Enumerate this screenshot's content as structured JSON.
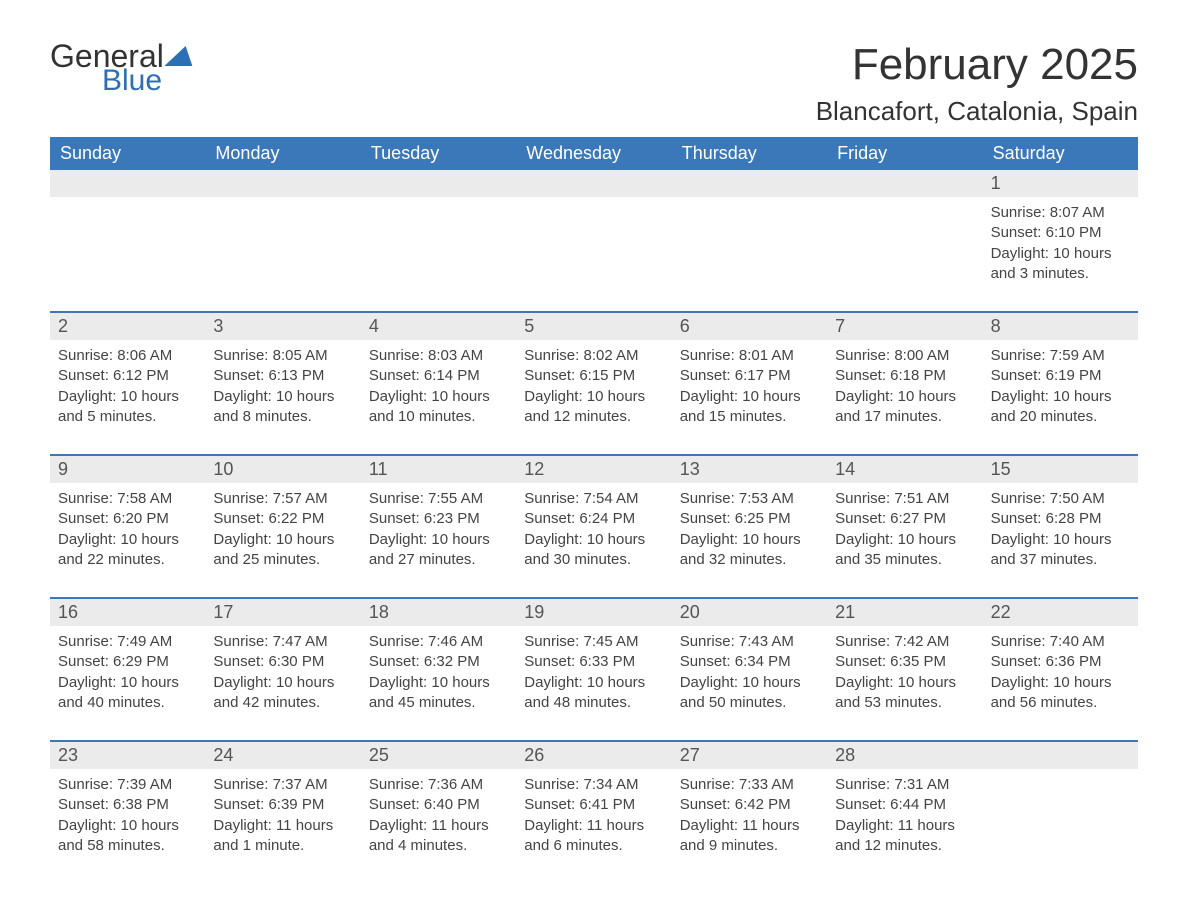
{
  "logo": {
    "text1": "General",
    "text2": "Blue"
  },
  "title": "February 2025",
  "location": "Blancafort, Catalonia, Spain",
  "colors": {
    "header_bg": "#3a78b9",
    "header_text": "#ffffff",
    "strip_bg": "#ebebeb",
    "strip_border": "#3a78b9",
    "body_text": "#444444",
    "title_text": "#333333",
    "logo_blue": "#2d6fb5"
  },
  "day_headers": [
    "Sunday",
    "Monday",
    "Tuesday",
    "Wednesday",
    "Thursday",
    "Friday",
    "Saturday"
  ],
  "weeks": [
    {
      "nums": [
        "",
        "",
        "",
        "",
        "",
        "",
        "1"
      ],
      "cells": [
        null,
        null,
        null,
        null,
        null,
        null,
        {
          "sunrise": "Sunrise: 8:07 AM",
          "sunset": "Sunset: 6:10 PM",
          "day1": "Daylight: 10 hours",
          "day2": "and 3 minutes."
        }
      ]
    },
    {
      "nums": [
        "2",
        "3",
        "4",
        "5",
        "6",
        "7",
        "8"
      ],
      "cells": [
        {
          "sunrise": "Sunrise: 8:06 AM",
          "sunset": "Sunset: 6:12 PM",
          "day1": "Daylight: 10 hours",
          "day2": "and 5 minutes."
        },
        {
          "sunrise": "Sunrise: 8:05 AM",
          "sunset": "Sunset: 6:13 PM",
          "day1": "Daylight: 10 hours",
          "day2": "and 8 minutes."
        },
        {
          "sunrise": "Sunrise: 8:03 AM",
          "sunset": "Sunset: 6:14 PM",
          "day1": "Daylight: 10 hours",
          "day2": "and 10 minutes."
        },
        {
          "sunrise": "Sunrise: 8:02 AM",
          "sunset": "Sunset: 6:15 PM",
          "day1": "Daylight: 10 hours",
          "day2": "and 12 minutes."
        },
        {
          "sunrise": "Sunrise: 8:01 AM",
          "sunset": "Sunset: 6:17 PM",
          "day1": "Daylight: 10 hours",
          "day2": "and 15 minutes."
        },
        {
          "sunrise": "Sunrise: 8:00 AM",
          "sunset": "Sunset: 6:18 PM",
          "day1": "Daylight: 10 hours",
          "day2": "and 17 minutes."
        },
        {
          "sunrise": "Sunrise: 7:59 AM",
          "sunset": "Sunset: 6:19 PM",
          "day1": "Daylight: 10 hours",
          "day2": "and 20 minutes."
        }
      ]
    },
    {
      "nums": [
        "9",
        "10",
        "11",
        "12",
        "13",
        "14",
        "15"
      ],
      "cells": [
        {
          "sunrise": "Sunrise: 7:58 AM",
          "sunset": "Sunset: 6:20 PM",
          "day1": "Daylight: 10 hours",
          "day2": "and 22 minutes."
        },
        {
          "sunrise": "Sunrise: 7:57 AM",
          "sunset": "Sunset: 6:22 PM",
          "day1": "Daylight: 10 hours",
          "day2": "and 25 minutes."
        },
        {
          "sunrise": "Sunrise: 7:55 AM",
          "sunset": "Sunset: 6:23 PM",
          "day1": "Daylight: 10 hours",
          "day2": "and 27 minutes."
        },
        {
          "sunrise": "Sunrise: 7:54 AM",
          "sunset": "Sunset: 6:24 PM",
          "day1": "Daylight: 10 hours",
          "day2": "and 30 minutes."
        },
        {
          "sunrise": "Sunrise: 7:53 AM",
          "sunset": "Sunset: 6:25 PM",
          "day1": "Daylight: 10 hours",
          "day2": "and 32 minutes."
        },
        {
          "sunrise": "Sunrise: 7:51 AM",
          "sunset": "Sunset: 6:27 PM",
          "day1": "Daylight: 10 hours",
          "day2": "and 35 minutes."
        },
        {
          "sunrise": "Sunrise: 7:50 AM",
          "sunset": "Sunset: 6:28 PM",
          "day1": "Daylight: 10 hours",
          "day2": "and 37 minutes."
        }
      ]
    },
    {
      "nums": [
        "16",
        "17",
        "18",
        "19",
        "20",
        "21",
        "22"
      ],
      "cells": [
        {
          "sunrise": "Sunrise: 7:49 AM",
          "sunset": "Sunset: 6:29 PM",
          "day1": "Daylight: 10 hours",
          "day2": "and 40 minutes."
        },
        {
          "sunrise": "Sunrise: 7:47 AM",
          "sunset": "Sunset: 6:30 PM",
          "day1": "Daylight: 10 hours",
          "day2": "and 42 minutes."
        },
        {
          "sunrise": "Sunrise: 7:46 AM",
          "sunset": "Sunset: 6:32 PM",
          "day1": "Daylight: 10 hours",
          "day2": "and 45 minutes."
        },
        {
          "sunrise": "Sunrise: 7:45 AM",
          "sunset": "Sunset: 6:33 PM",
          "day1": "Daylight: 10 hours",
          "day2": "and 48 minutes."
        },
        {
          "sunrise": "Sunrise: 7:43 AM",
          "sunset": "Sunset: 6:34 PM",
          "day1": "Daylight: 10 hours",
          "day2": "and 50 minutes."
        },
        {
          "sunrise": "Sunrise: 7:42 AM",
          "sunset": "Sunset: 6:35 PM",
          "day1": "Daylight: 10 hours",
          "day2": "and 53 minutes."
        },
        {
          "sunrise": "Sunrise: 7:40 AM",
          "sunset": "Sunset: 6:36 PM",
          "day1": "Daylight: 10 hours",
          "day2": "and 56 minutes."
        }
      ]
    },
    {
      "nums": [
        "23",
        "24",
        "25",
        "26",
        "27",
        "28",
        ""
      ],
      "cells": [
        {
          "sunrise": "Sunrise: 7:39 AM",
          "sunset": "Sunset: 6:38 PM",
          "day1": "Daylight: 10 hours",
          "day2": "and 58 minutes."
        },
        {
          "sunrise": "Sunrise: 7:37 AM",
          "sunset": "Sunset: 6:39 PM",
          "day1": "Daylight: 11 hours",
          "day2": "and 1 minute."
        },
        {
          "sunrise": "Sunrise: 7:36 AM",
          "sunset": "Sunset: 6:40 PM",
          "day1": "Daylight: 11 hours",
          "day2": "and 4 minutes."
        },
        {
          "sunrise": "Sunrise: 7:34 AM",
          "sunset": "Sunset: 6:41 PM",
          "day1": "Daylight: 11 hours",
          "day2": "and 6 minutes."
        },
        {
          "sunrise": "Sunrise: 7:33 AM",
          "sunset": "Sunset: 6:42 PM",
          "day1": "Daylight: 11 hours",
          "day2": "and 9 minutes."
        },
        {
          "sunrise": "Sunrise: 7:31 AM",
          "sunset": "Sunset: 6:44 PM",
          "day1": "Daylight: 11 hours",
          "day2": "and 12 minutes."
        },
        null
      ]
    }
  ]
}
